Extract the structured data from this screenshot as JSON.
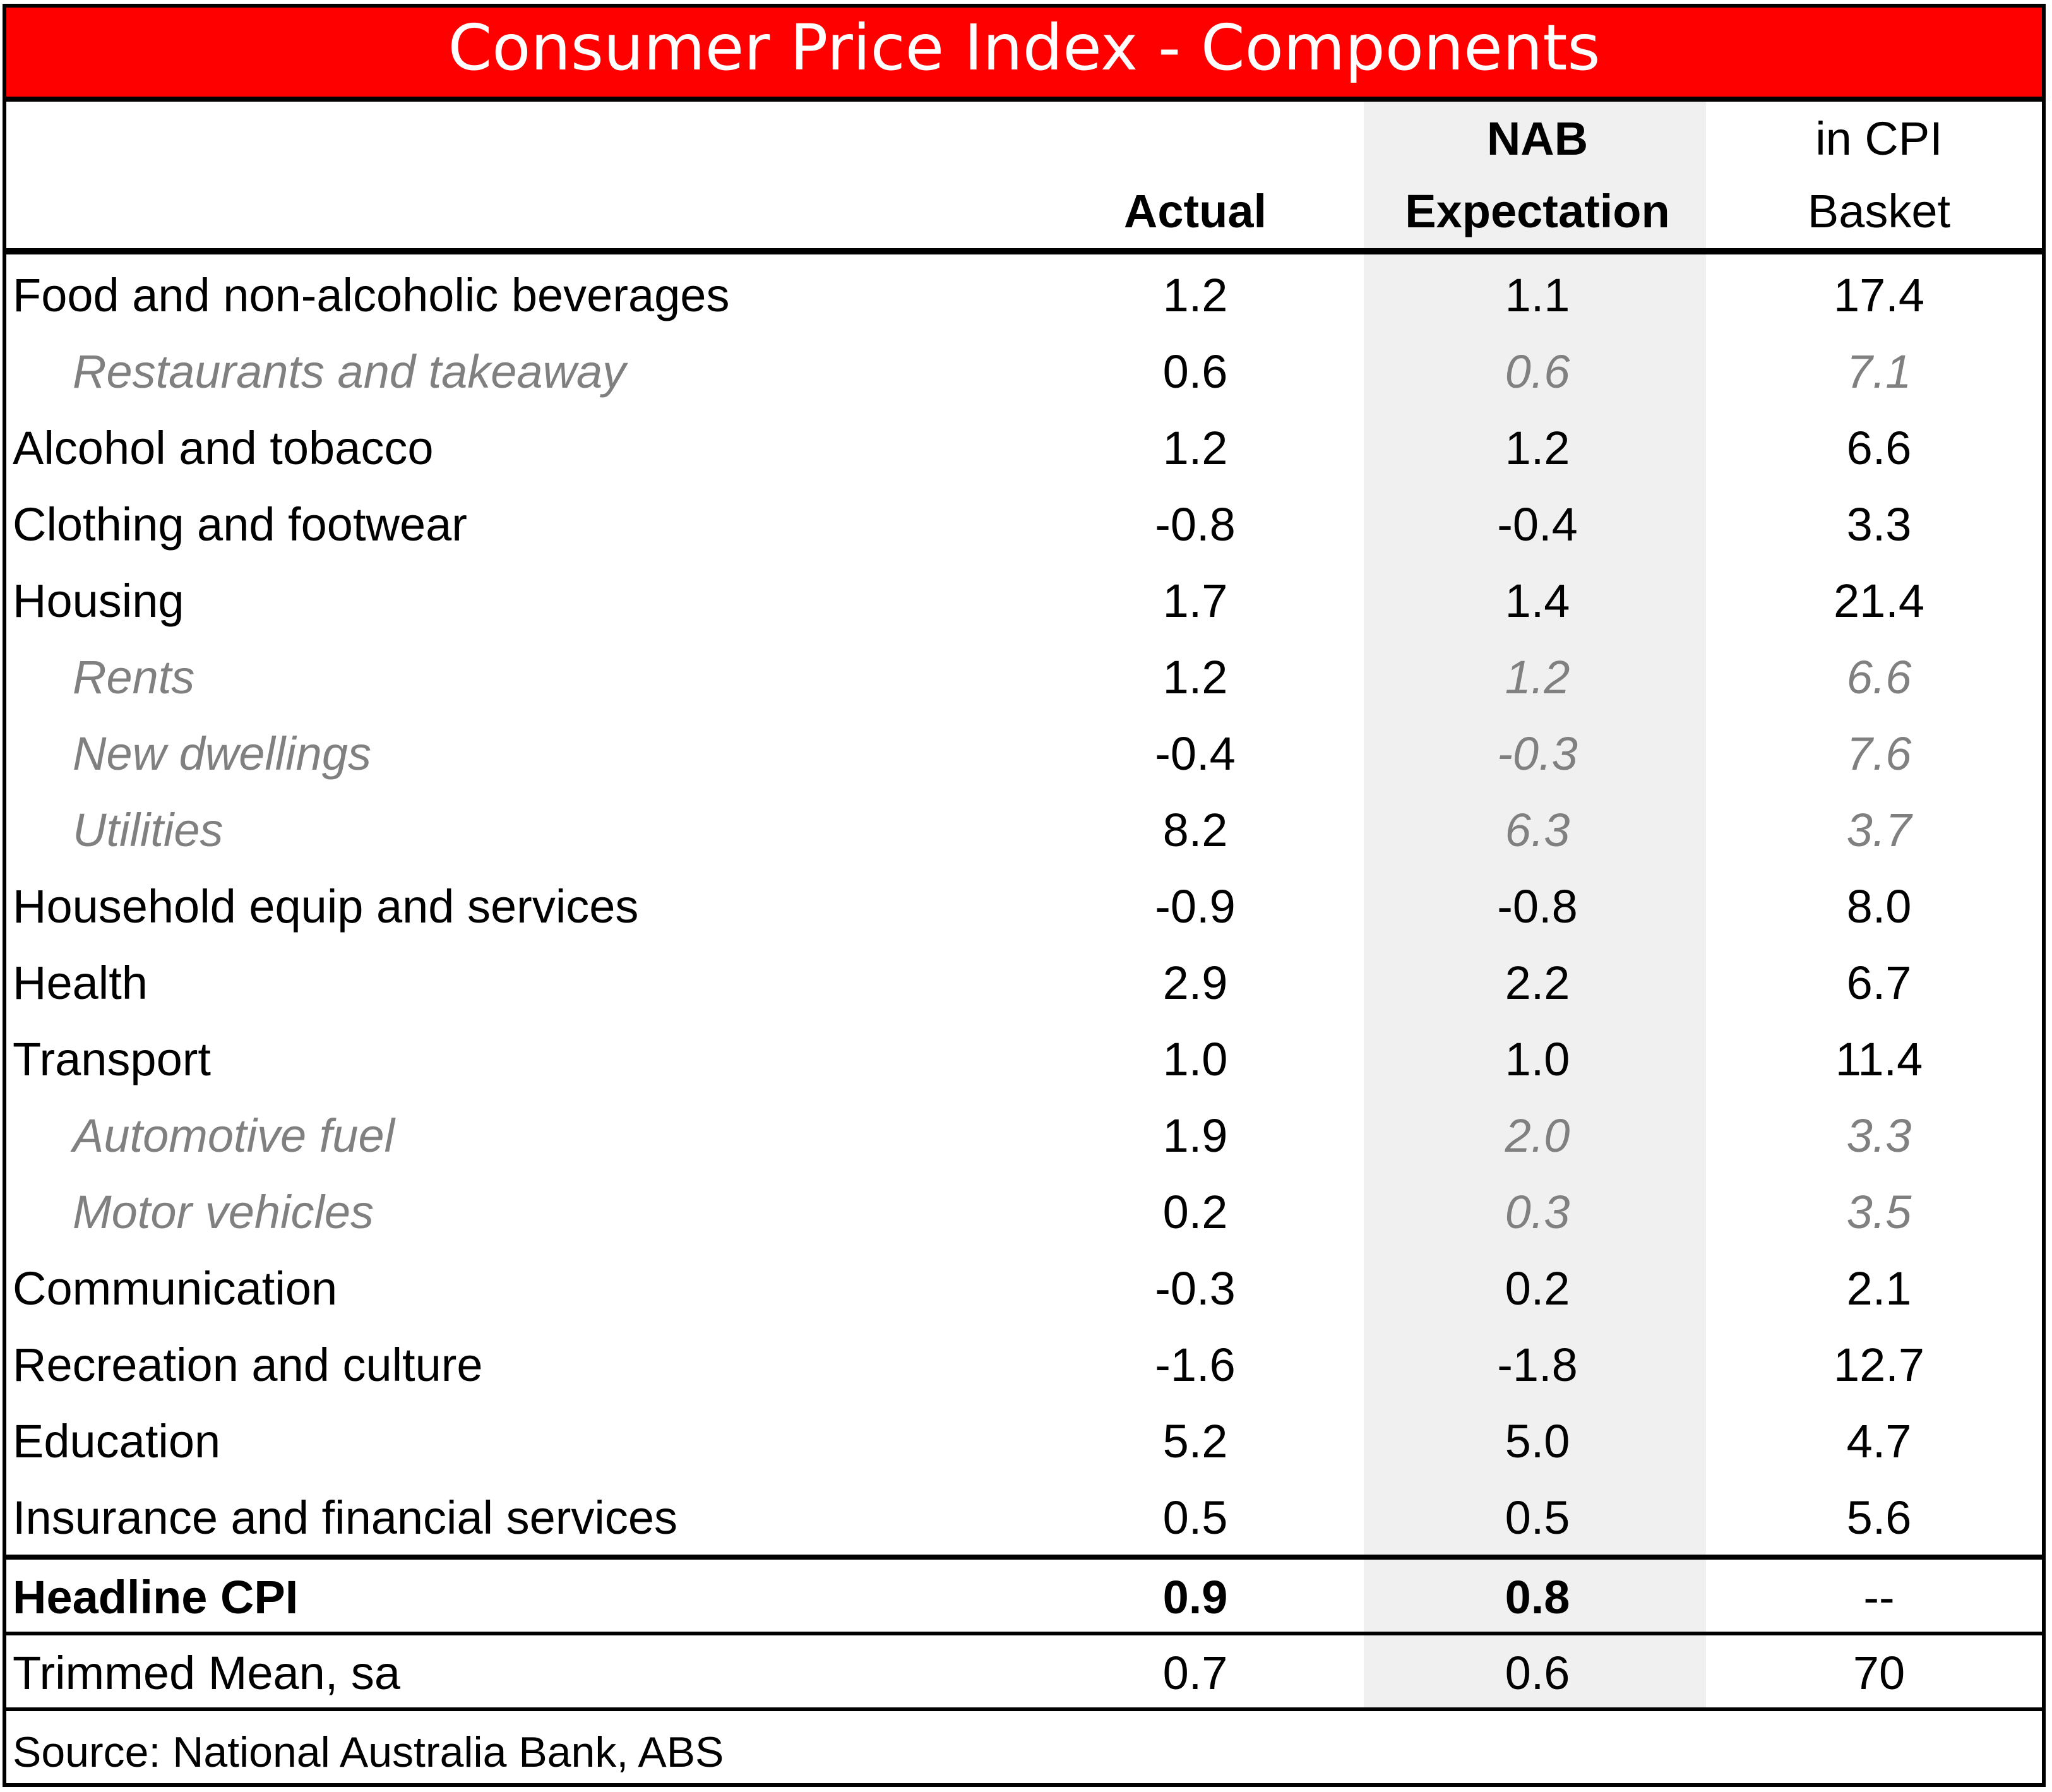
{
  "title": "Consumer Price Index - Components",
  "colors": {
    "title_bg": "#ff0000",
    "title_text": "#ffffff",
    "sub_text": "#808080",
    "shade": "#f0f0f0"
  },
  "chart_data": {
    "type": "table",
    "title": "Consumer Price Index - Components",
    "headers": {
      "actual": "Actual",
      "nab_line1": "NAB",
      "nab_line2": "Expectation",
      "basket_line1": "in CPI",
      "basket_line2": "Basket"
    },
    "rows": [
      {
        "label": "Food and non-alcoholic beverages",
        "actual": "1.2",
        "nab": "1.1",
        "basket": "17.4",
        "sub": false
      },
      {
        "label": "Restaurants and takeaway",
        "actual": "0.6",
        "nab": "0.6",
        "basket": "7.1",
        "sub": true
      },
      {
        "label": "Alcohol and tobacco",
        "actual": "1.2",
        "nab": "1.2",
        "basket": "6.6",
        "sub": false
      },
      {
        "label": "Clothing and footwear",
        "actual": "-0.8",
        "nab": "-0.4",
        "basket": "3.3",
        "sub": false
      },
      {
        "label": "Housing",
        "actual": "1.7",
        "nab": "1.4",
        "basket": "21.4",
        "sub": false
      },
      {
        "label": "Rents",
        "actual": "1.2",
        "nab": "1.2",
        "basket": "6.6",
        "sub": true
      },
      {
        "label": "New dwellings",
        "actual": "-0.4",
        "nab": "-0.3",
        "basket": "7.6",
        "sub": true
      },
      {
        "label": "Utilities",
        "actual": "8.2",
        "nab": "6.3",
        "basket": "3.7",
        "sub": true
      },
      {
        "label": "Household equip and services",
        "actual": "-0.9",
        "nab": "-0.8",
        "basket": "8.0",
        "sub": false
      },
      {
        "label": "Health",
        "actual": "2.9",
        "nab": "2.2",
        "basket": "6.7",
        "sub": false
      },
      {
        "label": "Transport",
        "actual": "1.0",
        "nab": "1.0",
        "basket": "11.4",
        "sub": false
      },
      {
        "label": "Automotive fuel",
        "actual": "1.9",
        "nab": "2.0",
        "basket": "3.3",
        "sub": true
      },
      {
        "label": "Motor vehicles",
        "actual": "0.2",
        "nab": "0.3",
        "basket": "3.5",
        "sub": true
      },
      {
        "label": "Communication",
        "actual": "-0.3",
        "nab": "0.2",
        "basket": "2.1",
        "sub": false
      },
      {
        "label": "Recreation and culture",
        "actual": "-1.6",
        "nab": "-1.8",
        "basket": "12.7",
        "sub": false
      },
      {
        "label": "Education",
        "actual": "5.2",
        "nab": "5.0",
        "basket": "4.7",
        "sub": false
      },
      {
        "label": "Insurance and financial services",
        "actual": "0.5",
        "nab": "0.5",
        "basket": "5.6",
        "sub": false
      }
    ],
    "headline": {
      "label": "Headline CPI",
      "actual": "0.9",
      "nab": "0.8",
      "basket": "--"
    },
    "trimmed": {
      "label": "Trimmed Mean, sa",
      "actual": "0.7",
      "nab": "0.6",
      "basket": "70"
    }
  },
  "source": "Source: National Australia Bank, ABS"
}
